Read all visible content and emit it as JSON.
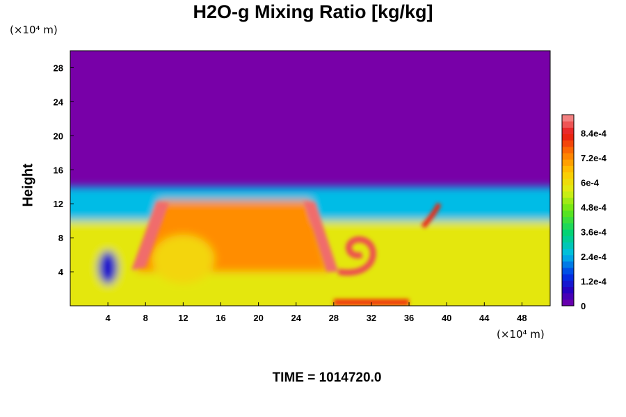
{
  "chart_data": {
    "type": "heatmap",
    "title": "H2O-g Mixing Ratio [kg/kg]",
    "ylabel": "Height",
    "x_unit": "(×10⁴ m)",
    "y_unit": "(×10⁴ m)",
    "xlim": [
      0,
      51
    ],
    "ylim": [
      0,
      30
    ],
    "x_ticks": [
      4,
      8,
      12,
      16,
      20,
      24,
      28,
      32,
      36,
      40,
      44,
      48
    ],
    "y_ticks": [
      4,
      8,
      12,
      16,
      20,
      24,
      28
    ],
    "colorbar": {
      "range": [
        0,
        0.00093
      ],
      "tick_values": [
        0,
        0.00012,
        0.00024,
        0.00036,
        0.00048,
        0.0006,
        0.00072,
        0.00084
      ],
      "tick_labels": [
        "0",
        "1.2e-4",
        "2.4e-4",
        "3.6e-4",
        "4.8e-4",
        "6e-4",
        "7.2e-4",
        "8.4e-4"
      ]
    },
    "annotation": "TIME = 1014720.0",
    "background_value": 0,
    "features": [
      {
        "name": "moist-layer",
        "value": 0.00058,
        "x_range": [
          0,
          51
        ],
        "y_range": [
          0,
          10
        ]
      },
      {
        "name": "upper-boundary-mixing",
        "value": 0.00025,
        "x_range": [
          0,
          51
        ],
        "y_range": [
          10,
          14
        ]
      },
      {
        "name": "large-warm-plume",
        "value": 0.00072,
        "x_range": [
          6,
          28
        ],
        "y_range": [
          3,
          12.5
        ]
      },
      {
        "name": "left-plume-edge",
        "value": 0.0009,
        "x_range": [
          6,
          10
        ],
        "y_range": [
          4,
          12.3
        ]
      },
      {
        "name": "right-plume-edge",
        "value": 0.0009,
        "x_range": [
          24.5,
          28.5
        ],
        "y_range": [
          4,
          12.3
        ]
      },
      {
        "name": "curl-vortex",
        "value": 0.00088,
        "x_range": [
          29,
          33
        ],
        "y_range": [
          3.5,
          8
        ]
      },
      {
        "name": "right-finger",
        "value": 0.00082,
        "x_range": [
          37,
          40
        ],
        "y_range": [
          9,
          12
        ]
      },
      {
        "name": "dry-pocket",
        "value": 0.0001,
        "x_range": [
          3,
          5
        ],
        "y_range": [
          2.5,
          6.5
        ]
      }
    ]
  }
}
